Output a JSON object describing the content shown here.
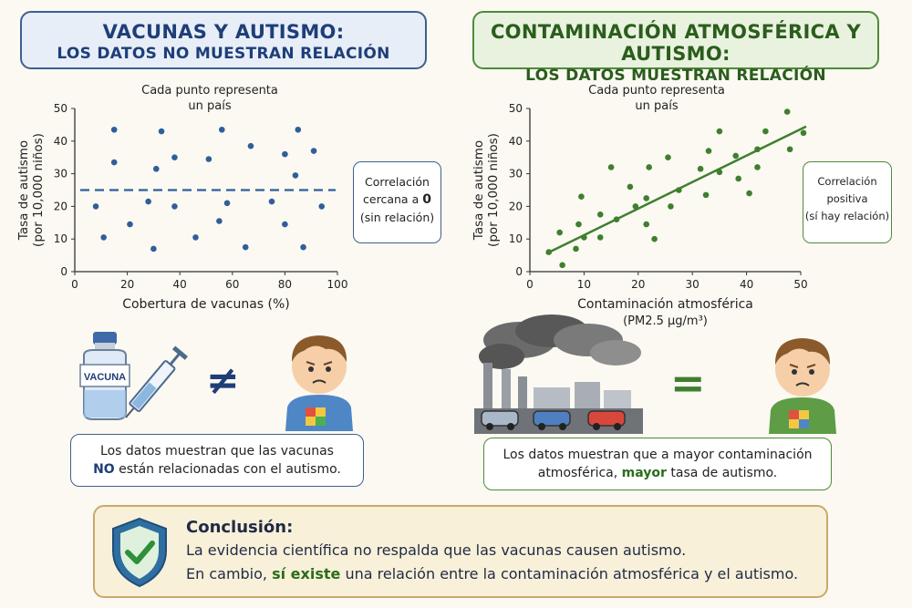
{
  "titles": {
    "left": {
      "line1": "VACUNAS Y AUTISMO:",
      "line2": "LOS DATOS NO MUESTRAN RELACIÓN"
    },
    "right": {
      "line1": "CONTAMINACIÓN ATMOSFÉRICA Y AUTISMO:",
      "line2": "LOS DATOS MUESTRAN RELACIÓN"
    }
  },
  "point_note": {
    "line1": "Cada punto representa",
    "line2": "un país"
  },
  "correlation_left": {
    "line1": "Correlación",
    "line2_pre": "cercana a ",
    "line2_value": "0",
    "line3": "(sin relación)"
  },
  "correlation_right": {
    "line1": "Correlación",
    "line2": "positiva",
    "line3": "(sí hay relación)"
  },
  "vaccine_label": "VACUNA",
  "symbols": {
    "not_equal": "≠",
    "equal": "="
  },
  "message_left": {
    "line1": "Los datos muestran que las vacunas",
    "line2_bold": "NO",
    "line2_rest": " están relacionadas con el autismo."
  },
  "message_right": {
    "line1": "Los datos muestran que a mayor contaminación",
    "line2_pre": "atmosférica, ",
    "line2_bold": "mayor",
    "line2_rest": " tasa de autismo."
  },
  "conclusion": {
    "title": "Conclusión:",
    "line1": "La evidencia científica no respalda que las vacunas causen autismo.",
    "line2_pre": "En cambio, ",
    "line2_bold": "sí existe",
    "line2_rest": " una relación entre la contaminación atmosférica y el autismo."
  },
  "colors": {
    "left_accent": "#2f5f9a",
    "right_accent": "#3f7f2e",
    "conclusion_bg": "#f8f0d9"
  },
  "chart_data": [
    {
      "type": "scatter",
      "xlabel": "Cobertura de vacunas (%)",
      "ylabel_line1": "Tasa de autismo",
      "ylabel_line2": "(por 10,000 niños)",
      "xlim": [
        0,
        100
      ],
      "ylim": [
        0,
        50
      ],
      "xticks": [
        0,
        20,
        40,
        60,
        80,
        100
      ],
      "yticks": [
        0,
        10,
        20,
        30,
        40,
        50
      ],
      "reference_line": {
        "style": "dashed",
        "y": 25
      },
      "points": [
        {
          "x": 8,
          "y": 20
        },
        {
          "x": 11,
          "y": 10.5
        },
        {
          "x": 15,
          "y": 33.5
        },
        {
          "x": 15,
          "y": 43.5
        },
        {
          "x": 21,
          "y": 14.5
        },
        {
          "x": 28,
          "y": 21.5
        },
        {
          "x": 30,
          "y": 7
        },
        {
          "x": 31,
          "y": 31.5
        },
        {
          "x": 33,
          "y": 43
        },
        {
          "x": 38,
          "y": 35
        },
        {
          "x": 38,
          "y": 20
        },
        {
          "x": 46,
          "y": 10.5
        },
        {
          "x": 51,
          "y": 34.5
        },
        {
          "x": 55,
          "y": 15.5
        },
        {
          "x": 56,
          "y": 43.5
        },
        {
          "x": 58,
          "y": 21
        },
        {
          "x": 65,
          "y": 7.5
        },
        {
          "x": 67,
          "y": 38.5
        },
        {
          "x": 75,
          "y": 21.5
        },
        {
          "x": 80,
          "y": 14.5
        },
        {
          "x": 80,
          "y": 36
        },
        {
          "x": 84,
          "y": 29.5
        },
        {
          "x": 85,
          "y": 43.5
        },
        {
          "x": 87,
          "y": 7.5
        },
        {
          "x": 91,
          "y": 37
        },
        {
          "x": 94,
          "y": 20
        }
      ]
    },
    {
      "type": "scatter",
      "xlabel": "Contaminación atmosférica",
      "xlabel_line2": "(PM2.5 µg/m³)",
      "ylabel_line1": "Tasa de autismo",
      "ylabel_line2": "(por 10,000 niños)",
      "xlim": [
        0,
        50
      ],
      "ylim": [
        0,
        50
      ],
      "xticks": [
        0,
        10,
        20,
        30,
        40,
        50
      ],
      "yticks": [
        0,
        10,
        20,
        30,
        40,
        50
      ],
      "trend_line": {
        "x1": 3,
        "y1": 5.5,
        "x2": 51,
        "y2": 44.5
      },
      "points": [
        {
          "x": 3.5,
          "y": 6
        },
        {
          "x": 5.5,
          "y": 12
        },
        {
          "x": 6,
          "y": 2
        },
        {
          "x": 8.5,
          "y": 7
        },
        {
          "x": 9,
          "y": 14.5
        },
        {
          "x": 9.5,
          "y": 23
        },
        {
          "x": 10,
          "y": 10.5
        },
        {
          "x": 13,
          "y": 17.5
        },
        {
          "x": 13,
          "y": 10.5
        },
        {
          "x": 15,
          "y": 32
        },
        {
          "x": 16,
          "y": 16
        },
        {
          "x": 18.5,
          "y": 26
        },
        {
          "x": 19.5,
          "y": 20
        },
        {
          "x": 21.5,
          "y": 22.5
        },
        {
          "x": 21.5,
          "y": 14.5
        },
        {
          "x": 22,
          "y": 32
        },
        {
          "x": 23,
          "y": 10
        },
        {
          "x": 25.5,
          "y": 35
        },
        {
          "x": 26,
          "y": 20
        },
        {
          "x": 27.5,
          "y": 25
        },
        {
          "x": 31.5,
          "y": 31.5
        },
        {
          "x": 32.5,
          "y": 23.5
        },
        {
          "x": 33,
          "y": 37
        },
        {
          "x": 35,
          "y": 30.5
        },
        {
          "x": 35,
          "y": 43
        },
        {
          "x": 38,
          "y": 35.5
        },
        {
          "x": 38.5,
          "y": 28.5
        },
        {
          "x": 40.5,
          "y": 24
        },
        {
          "x": 42,
          "y": 37.5
        },
        {
          "x": 42,
          "y": 32
        },
        {
          "x": 43.5,
          "y": 43
        },
        {
          "x": 47.5,
          "y": 49
        },
        {
          "x": 48,
          "y": 37.5
        },
        {
          "x": 50.5,
          "y": 42.5
        }
      ]
    }
  ]
}
